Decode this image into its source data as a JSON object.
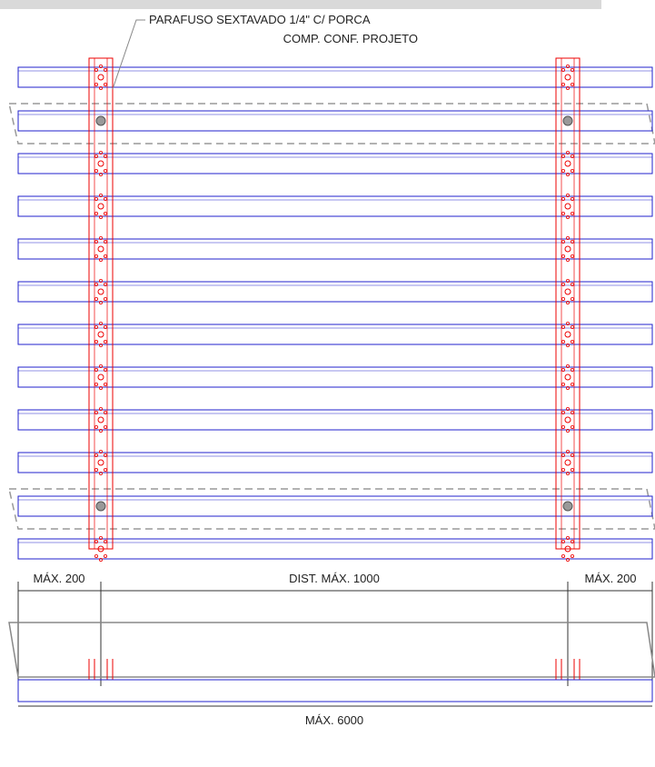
{
  "callout": {
    "line1": "PARAFUSO SEXTAVADO 1/4\" C/ PORCA",
    "line2": "COMP. CONF. PROJETO"
  },
  "dimensions": {
    "left": "MÁX. 200",
    "middle": "DIST. MÁX. 1000",
    "right": "MÁX. 200",
    "total": "MÁX. 6000"
  }
}
